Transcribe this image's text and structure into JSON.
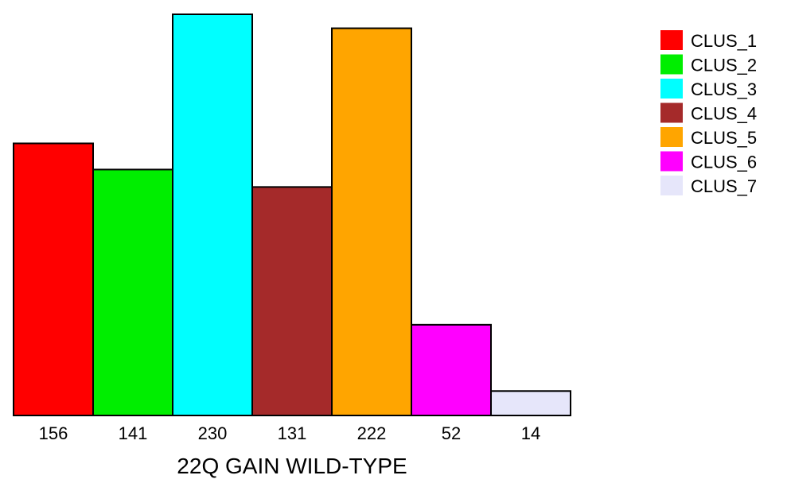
{
  "chart_data": {
    "type": "bar",
    "categories": [
      "CLUS_1",
      "CLUS_2",
      "CLUS_3",
      "CLUS_4",
      "CLUS_5",
      "CLUS_6",
      "CLUS_7"
    ],
    "values": [
      156,
      141,
      230,
      131,
      222,
      52,
      14
    ],
    "tick_labels": [
      "156",
      "141",
      "230",
      "131",
      "222",
      "52",
      "14"
    ],
    "colors": [
      "#ff0000",
      "#00ee00",
      "#00ffff",
      "#a52a2a",
      "#ffa500",
      "#ff00ff",
      "#e6e6fa"
    ],
    "xlabel": "22Q GAIN WILD-TYPE",
    "ylabel": "",
    "title": "",
    "ylim": [
      0,
      230
    ],
    "grid": false,
    "legend": {
      "position": "top-right",
      "entries": [
        "CLUS_1",
        "CLUS_2",
        "CLUS_3",
        "CLUS_4",
        "CLUS_5",
        "CLUS_6",
        "CLUS_7"
      ]
    }
  }
}
